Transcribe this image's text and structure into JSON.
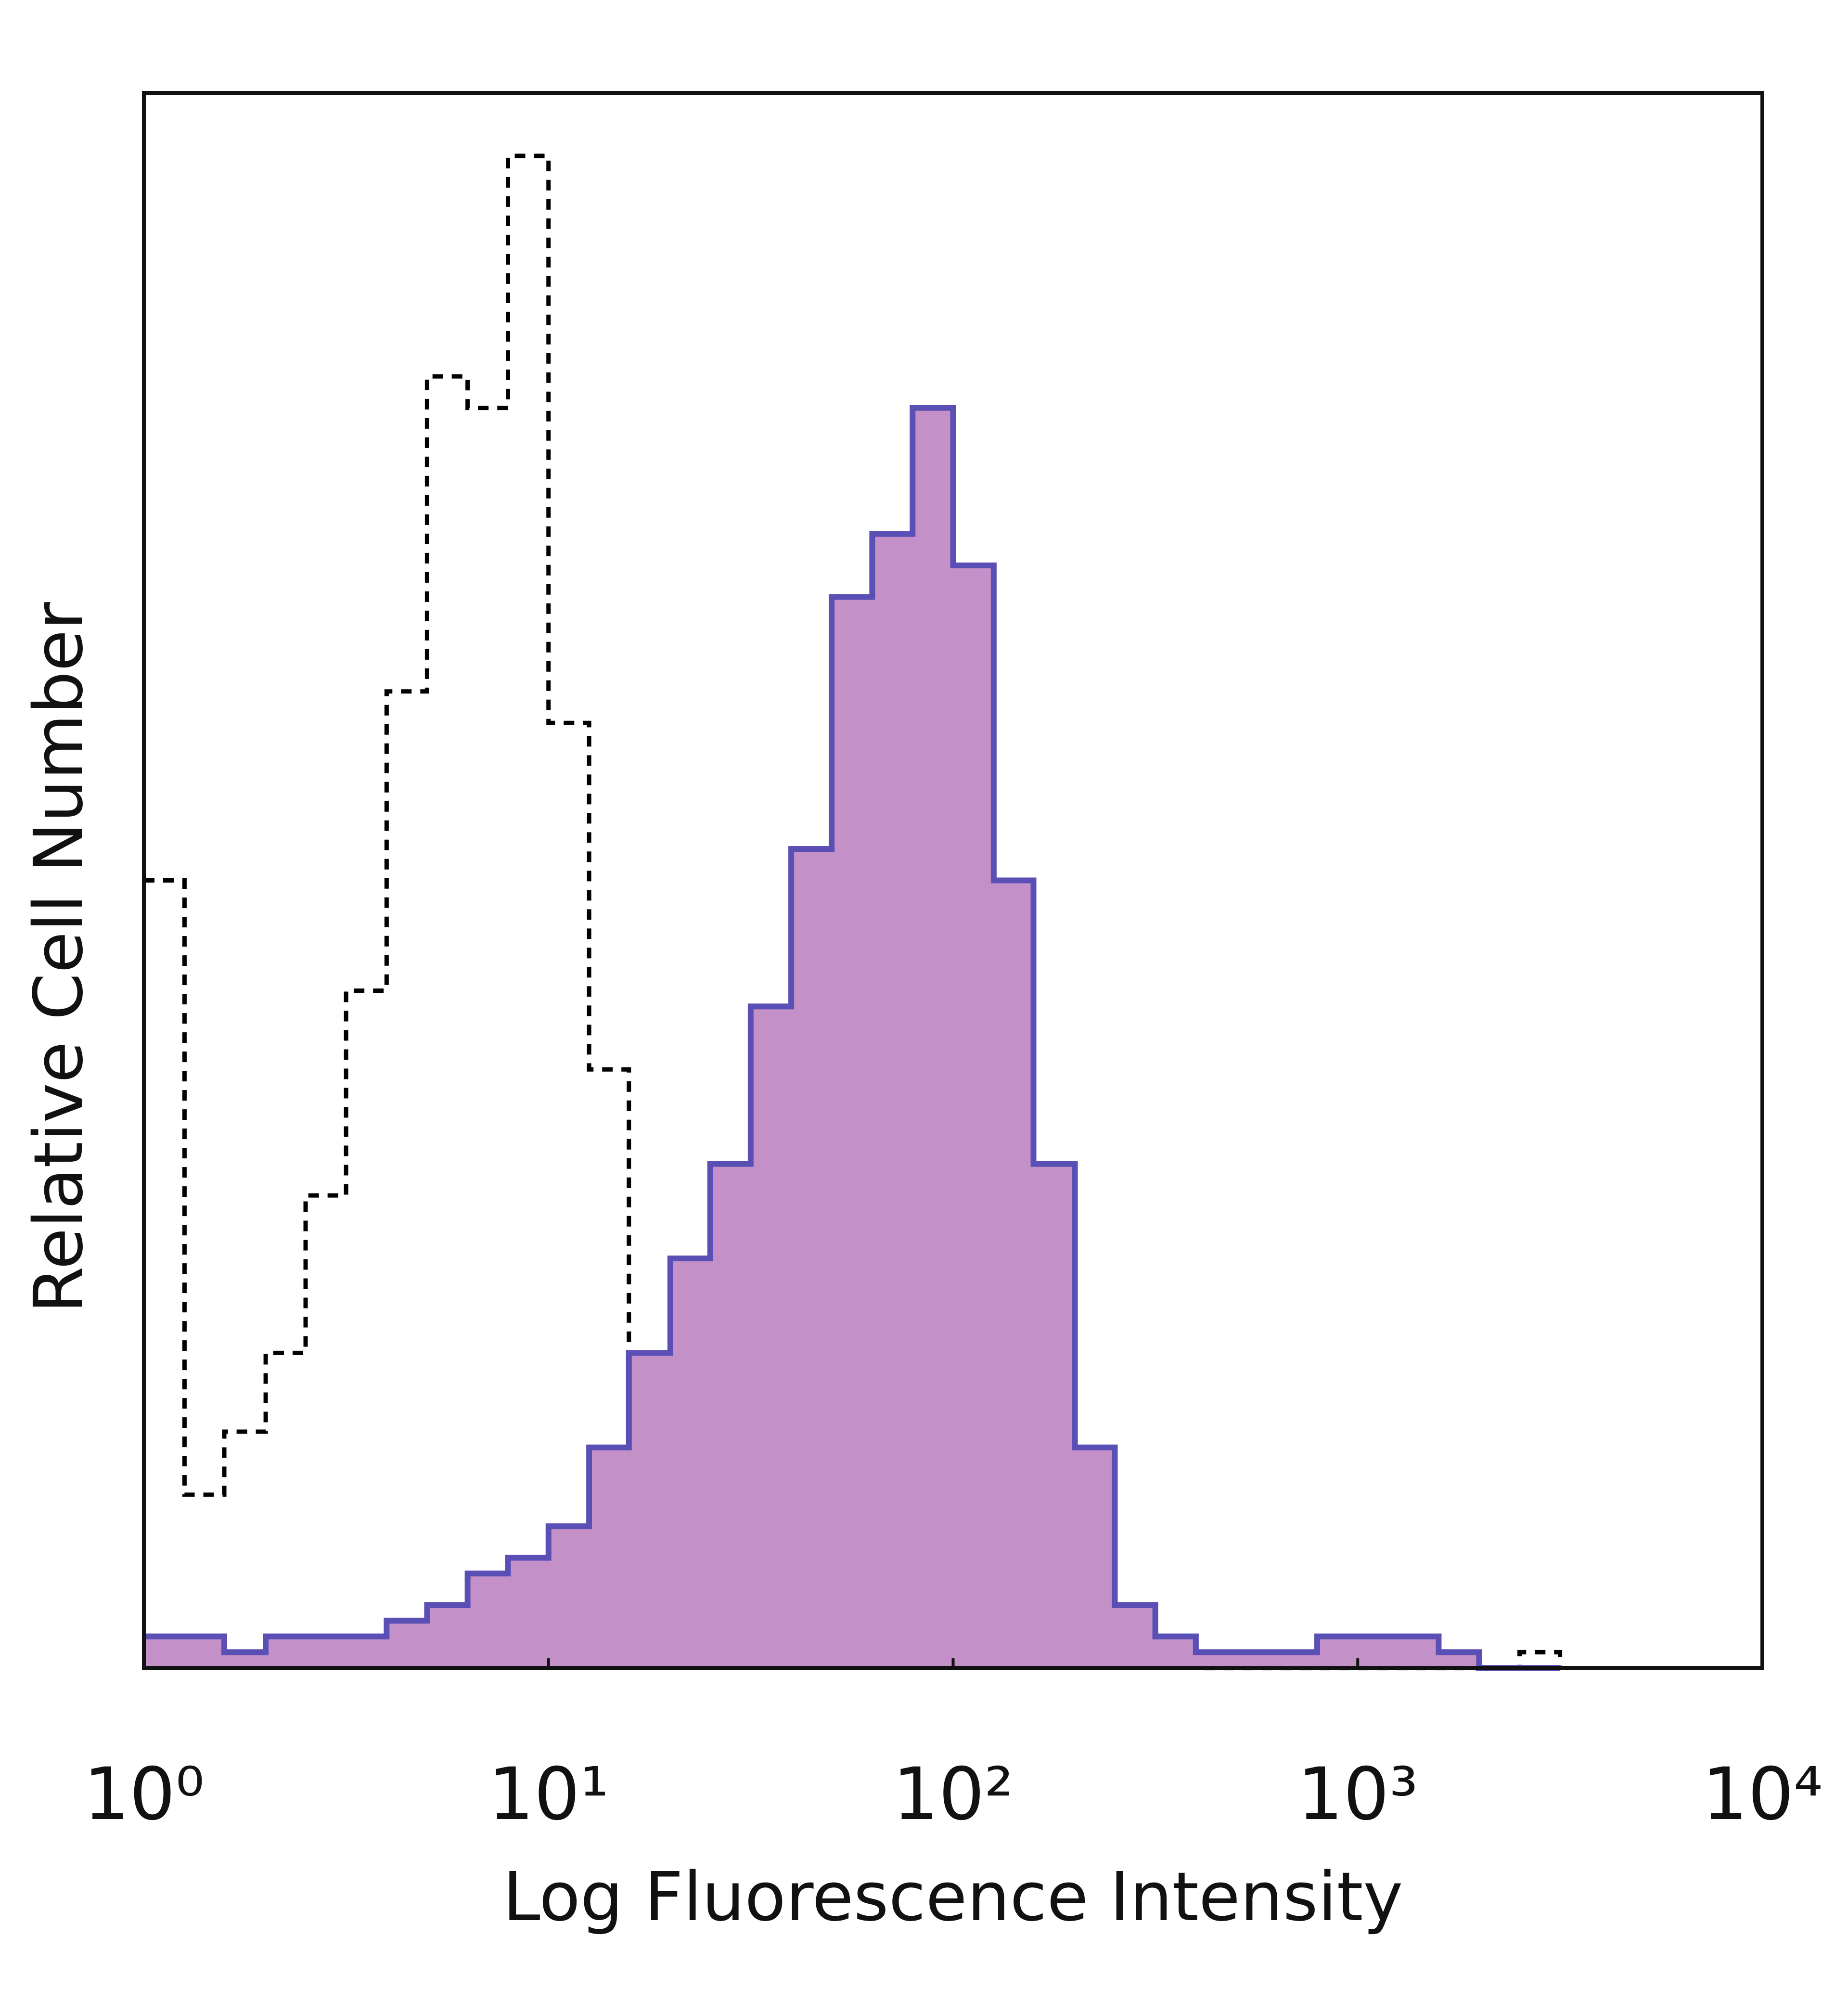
{
  "chart_data": {
    "type": "histogram",
    "x_label": "Log Fluorescence Intensity",
    "y_label": "Relative Cell Number",
    "xscale": "log",
    "xlim": [
      1,
      10000
    ],
    "ylim": [
      0,
      100
    ],
    "xticks": [
      {
        "value": 1,
        "label": "10⁰"
      },
      {
        "value": 10,
        "label": "10¹"
      },
      {
        "value": 100,
        "label": "10²"
      },
      {
        "value": 1000,
        "label": "10³"
      },
      {
        "value": 10000,
        "label": "10⁴"
      }
    ],
    "x": [
      1,
      1.26,
      1.58,
      2.0,
      2.51,
      3.16,
      3.98,
      5.01,
      6.31,
      7.94,
      10,
      12.6,
      15.8,
      20.0,
      25.1,
      31.6,
      39.8,
      50.1,
      63.1,
      79.4,
      100,
      126,
      158,
      200,
      251,
      316,
      398,
      501,
      631,
      794,
      1000,
      1259,
      1585,
      1995,
      2512,
      3162
    ],
    "series": [
      {
        "color": "#000000",
        "style": "dashed",
        "filled": false,
        "values": [
          50,
          11,
          15,
          20,
          30,
          43,
          62,
          82,
          80,
          96,
          60,
          38,
          20,
          12,
          7,
          5,
          3,
          2,
          2,
          1,
          2,
          1,
          1,
          1,
          1,
          0.5,
          0,
          0,
          0,
          0,
          0,
          0,
          0,
          0,
          1,
          0
        ]
      },
      {
        "color": "#5a4fb5",
        "fill": "#c490c8",
        "style": "solid",
        "filled": true,
        "values": [
          2,
          2,
          1,
          2,
          2,
          2,
          3,
          4,
          6,
          7,
          9,
          14,
          20,
          26,
          32,
          42,
          52,
          68,
          72,
          80,
          70,
          50,
          32,
          14,
          4,
          2,
          1,
          1,
          1,
          2,
          2,
          2,
          1,
          0,
          0,
          0
        ]
      }
    ]
  }
}
